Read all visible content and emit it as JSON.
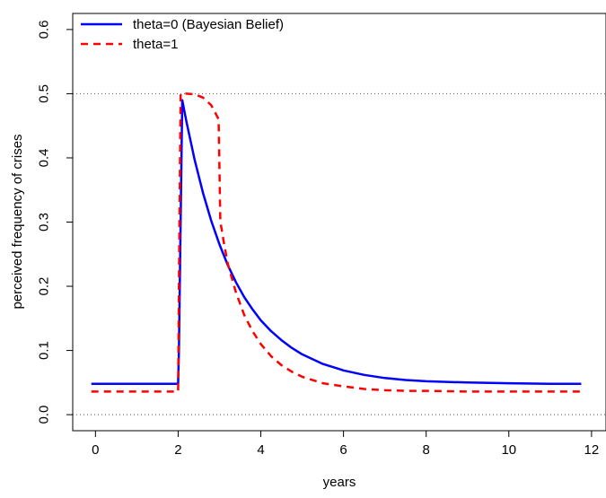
{
  "chart_data": {
    "type": "line",
    "xlabel": "years",
    "ylabel": "perceived frequency of crises",
    "xlim": [
      -0.55,
      12.35
    ],
    "ylim": [
      -0.025,
      0.625
    ],
    "xticks": [
      0,
      2,
      4,
      6,
      8,
      10,
      12
    ],
    "yticks": [
      0.0,
      0.1,
      0.2,
      0.3,
      0.4,
      0.5,
      0.6
    ],
    "xtick_labels": [
      "0",
      "2",
      "4",
      "6",
      "8",
      "10",
      "12"
    ],
    "ytick_labels": [
      "0.0",
      "0.1",
      "0.2",
      "0.3",
      "0.4",
      "0.5",
      "0.6"
    ],
    "reference_lines": [
      0.0,
      0.5
    ],
    "grid": false,
    "legend_position": "top-left",
    "series": [
      {
        "name": "theta=0 (Bayesian Belief)",
        "color": "#0000ff",
        "dash": "solid",
        "x": [
          -0.1,
          2.0,
          2.02,
          2.1,
          2.2,
          2.4,
          2.6,
          2.8,
          3.0,
          3.2,
          3.4,
          3.6,
          3.8,
          4.0,
          4.25,
          4.5,
          4.75,
          5.0,
          5.5,
          6.0,
          6.5,
          7.0,
          7.5,
          8.0,
          9.0,
          10.0,
          11.0,
          11.75
        ],
        "y": [
          0.048,
          0.048,
          0.1,
          0.49,
          0.457,
          0.397,
          0.346,
          0.302,
          0.265,
          0.233,
          0.206,
          0.183,
          0.164,
          0.147,
          0.13,
          0.116,
          0.104,
          0.094,
          0.079,
          0.069,
          0.062,
          0.057,
          0.054,
          0.052,
          0.05,
          0.049,
          0.048,
          0.048
        ]
      },
      {
        "name": "theta=1",
        "color": "#ff0000",
        "dash": "dashed",
        "x": [
          -0.1,
          2.0,
          2.02,
          2.06,
          2.1,
          2.2,
          2.4,
          2.6,
          2.8,
          2.9,
          2.98,
          3.0,
          3.02,
          3.05,
          3.1,
          3.2,
          3.4,
          3.6,
          3.8,
          4.0,
          4.25,
          4.5,
          4.75,
          5.0,
          5.5,
          6.0,
          6.5,
          7.0,
          7.5,
          8.0,
          9.0,
          10.0,
          11.0,
          11.75
        ],
        "y": [
          0.036,
          0.036,
          0.2,
          0.5,
          0.5,
          0.5,
          0.499,
          0.494,
          0.482,
          0.47,
          0.46,
          0.38,
          0.3,
          0.29,
          0.27,
          0.235,
          0.19,
          0.155,
          0.13,
          0.11,
          0.091,
          0.077,
          0.067,
          0.059,
          0.049,
          0.044,
          0.04,
          0.038,
          0.037,
          0.037,
          0.036,
          0.036,
          0.036,
          0.036
        ]
      }
    ]
  }
}
